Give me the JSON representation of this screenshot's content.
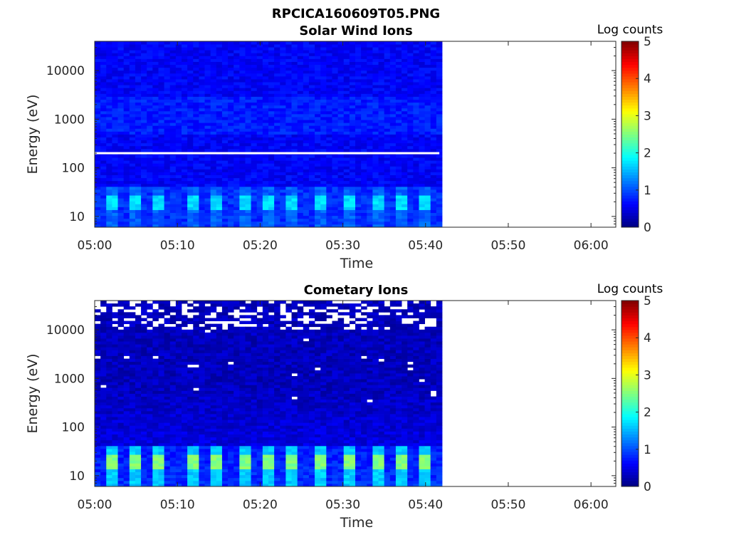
{
  "figure_title": "RPCICA160609T05.PNG",
  "chart_data": [
    {
      "type": "heatmap",
      "title": "Solar Wind Ions",
      "xlabel": "Time",
      "ylabel": "Energy (eV)",
      "x_ticks": [
        "05:00",
        "05:10",
        "05:20",
        "05:30",
        "05:40",
        "05:50",
        "06:00"
      ],
      "xlim": [
        "05:00",
        "06:03"
      ],
      "data_end": "05:41:40",
      "y_scale": "log",
      "y_ticks": [
        "10",
        "100",
        "1000",
        "10000"
      ],
      "ylim": [
        6,
        40000
      ],
      "colorbar": {
        "label": "Log counts",
        "ticks": [
          "0",
          "1",
          "2",
          "3",
          "4",
          "5"
        ],
        "range": [
          0,
          5
        ],
        "colormap": "jet"
      },
      "background_level_log_counts": 0.6,
      "low_energy_band_eV": [
        10,
        35
      ],
      "pulse_peak_log_counts": 1.7,
      "pulse_times": [
        "05:02",
        "05:05",
        "05:08",
        "05:12",
        "05:15",
        "05:18",
        "05:21",
        "05:24",
        "05:27",
        "05:31",
        "05:34",
        "05:37",
        "05:40"
      ],
      "missing_energy_row_eV": 200
    },
    {
      "type": "heatmap",
      "title": "Cometary Ions",
      "xlabel": "Time",
      "ylabel": "Energy (eV)",
      "x_ticks": [
        "05:00",
        "05:10",
        "05:20",
        "05:30",
        "05:40",
        "05:50",
        "06:00"
      ],
      "xlim": [
        "05:00",
        "06:03"
      ],
      "data_end": "05:41:40",
      "y_scale": "log",
      "y_ticks": [
        "10",
        "100",
        "1000",
        "10000"
      ],
      "ylim": [
        6,
        40000
      ],
      "colorbar": {
        "label": "Log counts",
        "ticks": [
          "0",
          "1",
          "2",
          "3",
          "4",
          "5"
        ],
        "range": [
          0,
          5
        ],
        "colormap": "jet"
      },
      "background_level_log_counts": 0.3,
      "low_energy_band_eV": [
        10,
        35
      ],
      "pulse_peak_log_counts": 2.5,
      "pulse_times": [
        "05:02",
        "05:05",
        "05:08",
        "05:12",
        "05:15",
        "05:18",
        "05:21",
        "05:24",
        "05:27",
        "05:31",
        "05:34",
        "05:37",
        "05:40"
      ],
      "sparse_high_energy_eV": [
        10000,
        40000
      ]
    }
  ]
}
